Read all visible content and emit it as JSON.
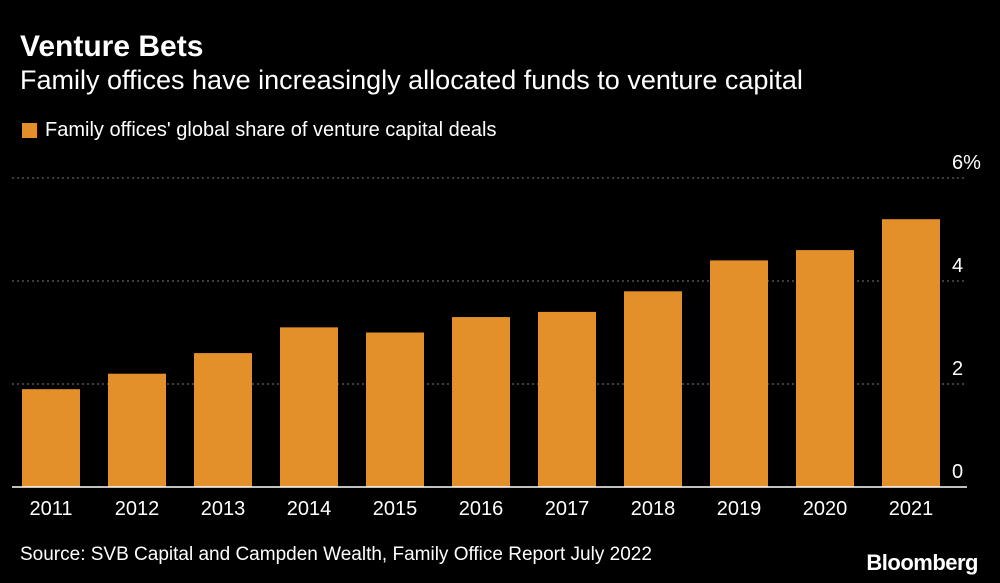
{
  "colors": {
    "background": "#000000",
    "bar": "#E3902A",
    "grid": "#7a7a7a",
    "axis": "#ffffff",
    "text": "#ffffff"
  },
  "logo": "Bloomberg",
  "source": "Source: SVB Capital and Campden Wealth, Family Office Report July 2022",
  "chart_data": {
    "type": "bar",
    "title": "Venture Bets",
    "subtitle": "Family offices have increasingly allocated funds to venture capital",
    "legend": [
      "Family offices' global share of venture capital deals"
    ],
    "categories": [
      "2011",
      "2012",
      "2013",
      "2014",
      "2015",
      "2016",
      "2017",
      "2018",
      "2019",
      "2020",
      "2021"
    ],
    "series": [
      {
        "name": "Family offices' global share of venture capital deals",
        "values": [
          1.9,
          2.2,
          2.6,
          3.1,
          3.0,
          3.3,
          3.4,
          3.8,
          4.4,
          4.6,
          5.2
        ]
      }
    ],
    "ylim": [
      0,
      6
    ],
    "yticks": [
      0,
      2,
      4,
      6
    ],
    "ytick_labels": [
      "0",
      "2",
      "4",
      "6%"
    ],
    "xlabel": "",
    "ylabel": "",
    "grid": true,
    "axis_side": "right"
  }
}
